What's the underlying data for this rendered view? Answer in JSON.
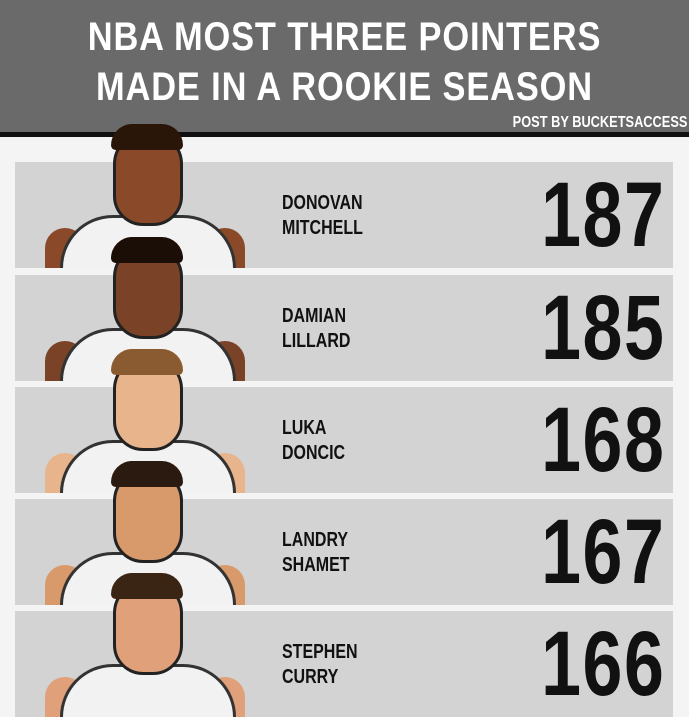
{
  "header": {
    "title_line1": "NBA MOST THREE POINTERS",
    "title_line2": "MADE IN A ROOKIE SEASON",
    "credit": "POST BY BUCKETSACCESS"
  },
  "colors": {
    "header_bg": "#6a6a6a",
    "row_bg": "#d3d3d3",
    "text": "#111111"
  },
  "chart_data": {
    "type": "table",
    "title": "NBA MOST THREE POINTERS MADE IN A ROOKIE SEASON",
    "rows": [
      {
        "first": "DONOVAN",
        "last": "MITCHELL",
        "value": "187"
      },
      {
        "first": "DAMIAN",
        "last": "LILLARD",
        "value": "185"
      },
      {
        "first": "LUKA",
        "last": "DONCIC",
        "value": "168"
      },
      {
        "first": "LANDRY",
        "last": "SHAMET",
        "value": "167"
      },
      {
        "first": "STEPHEN",
        "last": "CURRY",
        "value": "166"
      }
    ]
  }
}
